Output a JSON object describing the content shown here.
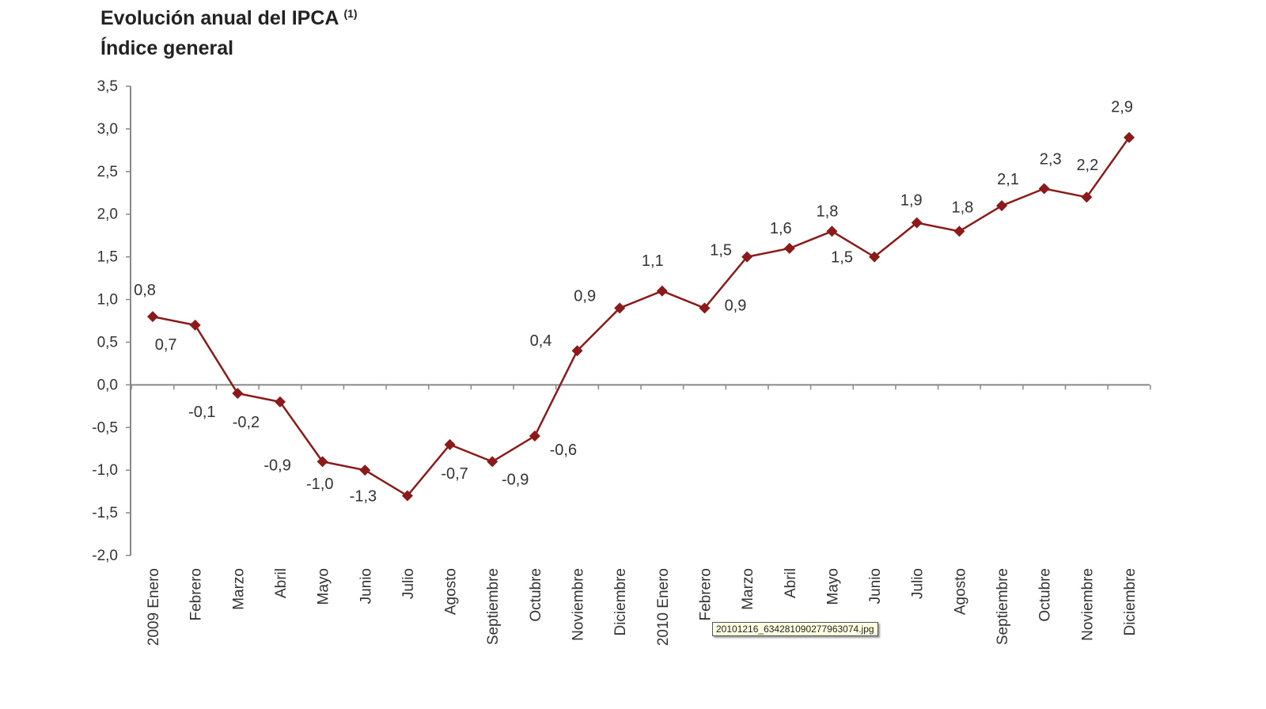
{
  "chart_data": {
    "type": "line",
    "title": "Evolución anual del IPCA",
    "title_superscript": "(1)",
    "subtitle": "Índice general",
    "categories": [
      "2009 Enero",
      "Febrero",
      "Marzo",
      "Abril",
      "Mayo",
      "Junio",
      "Julio",
      "Agosto",
      "Septiembre",
      "Octubre",
      "Noviembre",
      "Diciembre",
      "2010 Enero",
      "Febrero",
      "Marzo",
      "Abril",
      "Mayo",
      "Junio",
      "Julio",
      "Agosto",
      "Septiembre",
      "Octubre",
      "Noviembre",
      "Diciembre"
    ],
    "values": [
      0.8,
      0.7,
      -0.1,
      -0.2,
      -0.9,
      -1.0,
      -1.3,
      -0.7,
      -0.9,
      -0.6,
      0.4,
      0.9,
      1.1,
      0.9,
      1.5,
      1.6,
      1.8,
      1.5,
      1.9,
      1.8,
      2.1,
      2.3,
      2.2,
      2.9
    ],
    "data_labels": [
      "0,8",
      "0,7",
      "-0,1",
      "-0,2",
      "-0,9",
      "-1,0",
      "-1,3",
      "-0,7",
      "-0,9",
      "-0,6",
      "0,4",
      "0,9",
      "1,1",
      "0,9",
      "1,5",
      "1,6",
      "1,8",
      "1,5",
      "1,9",
      "1,8",
      "2,1",
      "2,3",
      "2,2",
      "2,9"
    ],
    "ylim": [
      -2.0,
      3.5
    ],
    "yticks": [
      "3,5",
      "3,0",
      "2,5",
      "2,0",
      "1,5",
      "1,0",
      "0,5",
      "0,0",
      "-0,5",
      "-1,0",
      "-1,5",
      "-2,0"
    ],
    "grid": false,
    "marker": "diamond",
    "line_color": "#8b1a1a"
  },
  "tooltip": "20101216_634281090277963074.jpg"
}
